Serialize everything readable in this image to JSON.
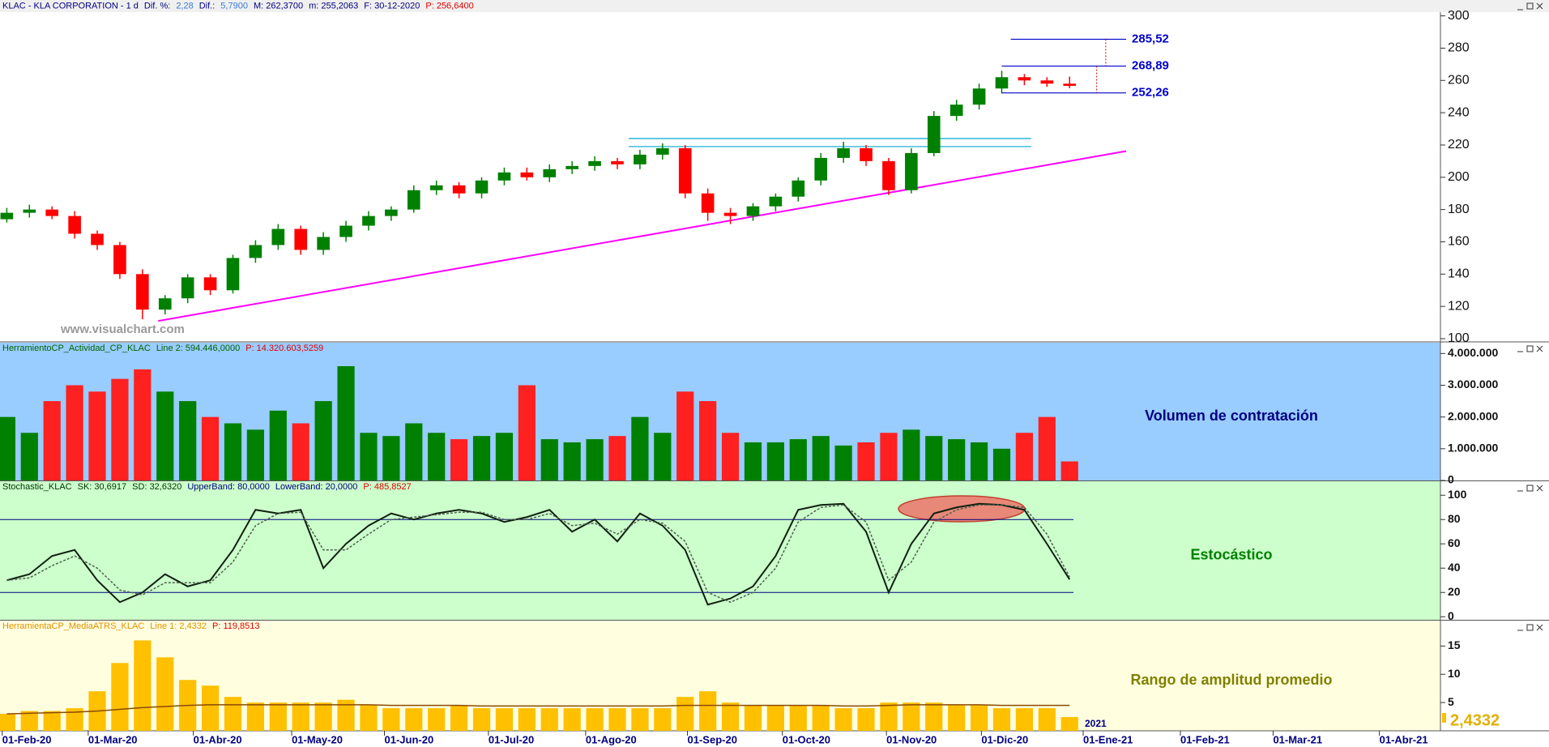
{
  "chart_data": [
    {
      "type": "candlestick",
      "title_parts": [
        {
          "text": "KLAC - KLA CORPORATION - 1 d",
          "color": "#000080"
        },
        {
          "text": "Dif. %:",
          "color": "#000080"
        },
        {
          "text": "2,28",
          "color": "#3a7bd5"
        },
        {
          "text": "Dif.:",
          "color": "#000080"
        },
        {
          "text": "5,7900",
          "color": "#3a7bd5"
        },
        {
          "text": "M: 262,3700",
          "color": "#000080"
        },
        {
          "text": "m: 255,2063",
          "color": "#000080"
        },
        {
          "text": "F: 30-12-2020",
          "color": "#000080"
        },
        {
          "text": "P: 256,6400",
          "color": "#e00000"
        }
      ],
      "watermark": "www.visualchart.com",
      "open": [
        174,
        178,
        180,
        176,
        165,
        158,
        140,
        118,
        125,
        138,
        130,
        150,
        158,
        168,
        155,
        163,
        170,
        176,
        180,
        192,
        195,
        190,
        198,
        203,
        200,
        205,
        207,
        210,
        208,
        214,
        218,
        190,
        178,
        176,
        182,
        188,
        198,
        212,
        218,
        210,
        192,
        215,
        238,
        245,
        255,
        262,
        260,
        258
      ],
      "high": [
        181,
        183,
        182,
        179,
        167,
        160,
        143,
        127,
        140,
        140,
        152,
        161,
        171,
        170,
        166,
        173,
        179,
        182,
        195,
        198,
        197,
        200,
        206,
        206,
        208,
        210,
        213,
        212,
        217,
        221,
        220,
        193,
        181,
        184,
        190,
        200,
        215,
        222,
        220,
        212,
        218,
        241,
        248,
        258,
        266,
        264,
        262,
        262.37
      ],
      "low": [
        172,
        175,
        174,
        162,
        155,
        137,
        112,
        115,
        122,
        127,
        128,
        147,
        155,
        152,
        152,
        160,
        167,
        173,
        178,
        189,
        187,
        187,
        195,
        198,
        197,
        202,
        204,
        205,
        205,
        211,
        187,
        173,
        171,
        173,
        179,
        185,
        195,
        209,
        207,
        189,
        190,
        213,
        235,
        242,
        252,
        257,
        256,
        255.21
      ],
      "close": [
        178,
        180,
        176,
        165,
        158,
        140,
        118,
        125,
        138,
        130,
        150,
        158,
        168,
        155,
        163,
        170,
        176,
        180,
        192,
        195,
        190,
        198,
        203,
        200,
        205,
        207,
        210,
        208,
        214,
        218,
        190,
        178,
        176,
        182,
        188,
        198,
        212,
        218,
        210,
        192,
        215,
        238,
        245,
        255,
        262,
        260,
        258,
        256.64
      ],
      "up_color": "#008000",
      "down_color": "#ff0000",
      "ylim": [
        98.5,
        302.3
      ],
      "yticks": [
        100,
        120,
        140,
        160,
        180,
        200,
        220,
        240,
        260,
        280,
        300
      ],
      "xlim": [
        -0.3,
        63.4
      ],
      "xticks": [
        {
          "value": -0.2,
          "label": "01-Feb-20"
        },
        {
          "value": 3.6,
          "label": "01-Mar-20"
        },
        {
          "value": 8.25,
          "label": "01-Abr-20"
        },
        {
          "value": 12.6,
          "label": "01-May-20"
        },
        {
          "value": 16.7,
          "label": "01-Jun-20"
        },
        {
          "value": 21.3,
          "label": "01-Jul-20"
        },
        {
          "value": 25.6,
          "label": "01-Ago-20"
        },
        {
          "value": 30.1,
          "label": "01-Sep-20"
        },
        {
          "value": 34.3,
          "label": "01-Oct-20"
        },
        {
          "value": 38.9,
          "label": "01-Nov-20"
        },
        {
          "value": 43.1,
          "label": "01-Dic-20"
        },
        {
          "value": 47.6,
          "label": "01-Ene-21"
        },
        {
          "value": 51.9,
          "label": "01-Feb-21"
        },
        {
          "value": 56.0,
          "label": "01-Mar-21"
        },
        {
          "value": 60.7,
          "label": "01-Abr-21"
        }
      ],
      "year_label": "2021",
      "levels": [
        {
          "value": 285.52,
          "label": "285,52",
          "x": [
            44.4,
            49.5
          ]
        },
        {
          "value": 268.89,
          "label": "268,89",
          "x": [
            44.0,
            49.5
          ]
        },
        {
          "value": 252.26,
          "label": "252,26",
          "x": [
            44.0,
            49.5
          ]
        }
      ],
      "level_color": "#0000cc",
      "zones": [
        {
          "value": 224,
          "x": [
            27.5,
            45.3
          ]
        },
        {
          "value": 219,
          "x": [
            27.5,
            45.3
          ]
        }
      ],
      "zone_color": "#00a8d0",
      "trendline": {
        "x": [
          6.7,
          49.5
        ],
        "y": [
          111,
          216.2
        ],
        "color": "#ff00ff"
      }
    },
    {
      "type": "bar",
      "title_parts": [
        {
          "text": "HerramientoCP_Actividad_CP_KLAC",
          "color": "#006400"
        },
        {
          "text": "Line 2: 594.446,0000",
          "color": "#006400"
        },
        {
          "text": "P: 14.320.603,5259",
          "color": "#e00000"
        }
      ],
      "label": "Volumen de contratación",
      "label_color": "#000080",
      "values": [
        2000000,
        1500000,
        2500000,
        3000000,
        2800000,
        3200000,
        3500000,
        2800000,
        2500000,
        2000000,
        1800000,
        1600000,
        2200000,
        1800000,
        2500000,
        3600000,
        1500000,
        1400000,
        1800000,
        1500000,
        1300000,
        1400000,
        1500000,
        3000000,
        1300000,
        1200000,
        1300000,
        1400000,
        2000000,
        1500000,
        2800000,
        2500000,
        1500000,
        1200000,
        1200000,
        1300000,
        1400000,
        1100000,
        1200000,
        1500000,
        1600000,
        1400000,
        1300000,
        1200000,
        1000000,
        1500000,
        2000000,
        600000
      ],
      "ylim": [
        0,
        4340000
      ],
      "yticks": [
        0,
        {
          "value": 1000000,
          "label": "1.000.000"
        },
        {
          "value": 2000000,
          "label": "2.000.000"
        },
        {
          "value": 3000000,
          "label": "3.000.000"
        },
        {
          "value": 4000000,
          "label": "4.000.000"
        }
      ],
      "background": "#99ccff"
    },
    {
      "type": "line",
      "title_parts": [
        {
          "text": "Stochastic_KLAC",
          "color": "#003300"
        },
        {
          "text": "SK: 30,6917",
          "color": "#003300"
        },
        {
          "text": "SD: 32,6320",
          "color": "#003300"
        },
        {
          "text": "UpperBand: 80,0000",
          "color": "#000080"
        },
        {
          "text": "LowerBand: 20,0000",
          "color": "#000080"
        },
        {
          "text": "P: 485,8527",
          "color": "#e00000"
        }
      ],
      "label": "Estocástico",
      "label_color": "#008000",
      "series": [
        {
          "color": "#102010",
          "dash": false,
          "values": [
            30,
            35,
            50,
            55,
            30,
            12,
            20,
            35,
            25,
            30,
            55,
            88,
            85,
            88,
            40,
            60,
            75,
            85,
            80,
            85,
            88,
            85,
            78,
            82,
            88,
            70,
            80,
            62,
            85,
            75,
            55,
            10,
            15,
            25,
            50,
            88,
            92,
            93,
            70,
            20,
            60,
            85,
            90,
            93,
            92,
            88,
            60,
            30.69
          ]
        },
        {
          "color": "#506050",
          "dash": true,
          "values": [
            30,
            32,
            42,
            50,
            40,
            22,
            18,
            28,
            28,
            28,
            45,
            75,
            85,
            86,
            55,
            55,
            68,
            80,
            82,
            84,
            86,
            86,
            80,
            80,
            85,
            75,
            77,
            68,
            80,
            77,
            62,
            20,
            12,
            20,
            40,
            78,
            90,
            92,
            78,
            30,
            45,
            78,
            88,
            92,
            92,
            90,
            68,
            32.63
          ]
        }
      ],
      "bands": [
        80,
        20
      ],
      "band_color": "#000080",
      "ylim": [
        -2.5,
        111.5
      ],
      "yticks": [
        0,
        20,
        40,
        60,
        80,
        100
      ],
      "background": "#ccffcc"
    },
    {
      "type": "bar",
      "title_parts": [
        {
          "text": "HerramientaCP_MediaATRS_KLAC",
          "color": "#e09000"
        },
        {
          "text": "Line 1: 2,4332",
          "color": "#e09000"
        },
        {
          "text": "P: 119,8513",
          "color": "#e00000"
        }
      ],
      "label": "Rango de amplitud promedio",
      "label_color": "#808000",
      "current_label": "2,4332",
      "series": [
        {
          "style": "bar",
          "color": "#ffc000",
          "values": [
            3,
            3.5,
            3.5,
            4,
            7,
            12,
            16,
            13,
            9,
            8,
            6,
            5,
            5,
            5,
            5,
            5.5,
            4.5,
            4,
            4,
            4,
            4.5,
            4,
            4,
            4,
            4,
            4,
            4,
            4,
            4,
            4,
            6,
            7,
            5,
            4.5,
            4.5,
            4.5,
            4.5,
            4,
            4,
            5,
            5,
            5,
            4.5,
            4.5,
            4,
            4,
            4,
            2.43
          ]
        },
        {
          "style": "line",
          "color": "#8b4a00",
          "values": [
            3,
            3.1,
            3.2,
            3.3,
            3.5,
            3.8,
            4.1,
            4.3,
            4.5,
            4.6,
            4.6,
            4.6,
            4.6,
            4.6,
            4.6,
            4.6,
            4.6,
            4.5,
            4.5,
            4.5,
            4.5,
            4.4,
            4.4,
            4.4,
            4.4,
            4.4,
            4.4,
            4.4,
            4.4,
            4.4,
            4.5,
            4.5,
            4.5,
            4.5,
            4.5,
            4.5,
            4.5,
            4.4,
            4.4,
            4.5,
            4.6,
            4.6,
            4.6,
            4.6,
            4.5,
            4.5,
            4.5,
            4.5
          ]
        }
      ],
      "ylim": [
        0,
        19.5
      ],
      "yticks": [
        5,
        10,
        15
      ],
      "background": "#ffffe0"
    }
  ]
}
